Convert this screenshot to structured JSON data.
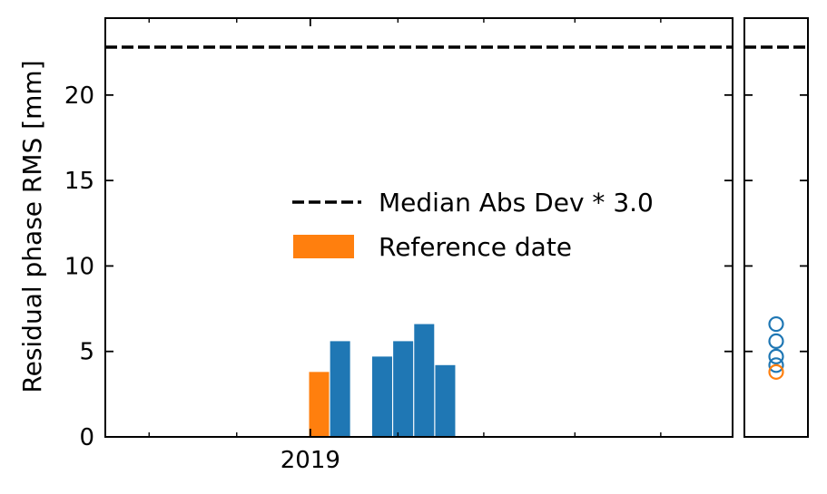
{
  "chart_data": {
    "type": "bar",
    "ylabel": "Residual phase RMS [mm]",
    "ylim": [
      0,
      24.5
    ],
    "yticks": [
      0,
      5,
      10,
      15,
      20
    ],
    "xlim": [
      "2018-09-06",
      "2019-08-30"
    ],
    "x_tick_labels": [
      {
        "date": "2019-01-01",
        "label": "2019"
      }
    ],
    "minor_x_ticks": [
      "2018-10-01",
      "2018-11-20",
      "2019-02-20",
      "2019-04-10",
      "2019-06-01",
      "2019-07-20"
    ],
    "threshold": {
      "label": "Median Abs Dev * 3.0",
      "value": 22.8,
      "style": "dashed",
      "color": "#000000"
    },
    "reference_label": "Reference date",
    "colors": {
      "bar": "#1f77b4",
      "reference": "#ff7f0e"
    },
    "bars": [
      {
        "date": "2019-01-06",
        "value": 3.8,
        "reference": true
      },
      {
        "date": "2019-01-18",
        "value": 5.6,
        "reference": false
      },
      {
        "date": "2019-02-11",
        "value": 4.7,
        "reference": false
      },
      {
        "date": "2019-02-23",
        "value": 5.6,
        "reference": false
      },
      {
        "date": "2019-03-07",
        "value": 6.6,
        "reference": false
      },
      {
        "date": "2019-03-19",
        "value": 4.2,
        "reference": false
      }
    ],
    "legend_position": "center-right",
    "grid": false,
    "side_panel": {
      "type": "scatter",
      "values": [
        {
          "value": 6.6,
          "reference": false
        },
        {
          "value": 5.6,
          "reference": false
        },
        {
          "value": 4.7,
          "reference": false
        },
        {
          "value": 4.2,
          "reference": false
        },
        {
          "value": 3.8,
          "reference": true
        }
      ],
      "threshold": 22.8
    }
  }
}
